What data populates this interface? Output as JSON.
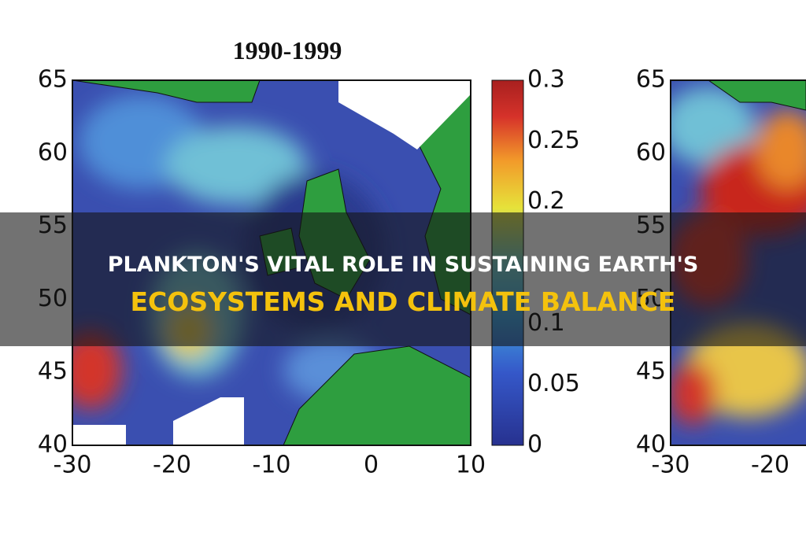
{
  "figure": {
    "panels": [
      {
        "title": "1990-1999",
        "yticks": [
          "65",
          "60",
          "55",
          "50",
          "45",
          "40"
        ],
        "xticks": [
          "-30",
          "-20",
          "-10",
          "0",
          "10"
        ]
      },
      {
        "yticks": [
          "65",
          "60",
          "55",
          "50",
          "45",
          "40"
        ],
        "xticks": [
          "-30",
          "-20"
        ]
      }
    ],
    "colorbar": {
      "ticks": [
        "0.3",
        "0.25",
        "0.2",
        "0.1",
        "0.05",
        "0"
      ]
    }
  },
  "banner": {
    "lines": [
      "PLANKTON'S VITAL ROLE IN SUSTAINING EARTH'S",
      "ECOSYSTEMS AND CLIMATE BALANCE"
    ]
  }
}
